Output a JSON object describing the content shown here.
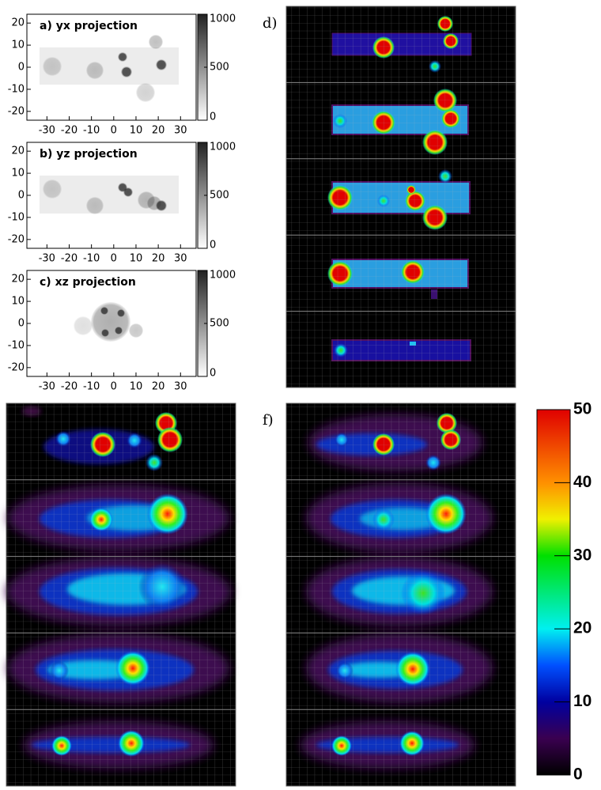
{
  "chart_data": [
    {
      "type": "heatmap",
      "title": "a) yx projection",
      "xlim": [
        -39,
        37
      ],
      "ylim": [
        -24,
        24
      ],
      "xticks": [
        -30,
        -20,
        -10,
        0,
        10,
        20,
        30
      ],
      "yticks": [
        -20,
        -10,
        0,
        10,
        20
      ],
      "clim": [
        0,
        1000
      ],
      "cticks": [
        0,
        500,
        1000
      ]
    },
    {
      "type": "heatmap",
      "title": "b) yz projection",
      "xlim": [
        -39,
        37
      ],
      "ylim": [
        -24,
        24
      ],
      "xticks": [
        -30,
        -20,
        -10,
        0,
        10,
        20,
        30
      ],
      "yticks": [
        -20,
        -10,
        0,
        10,
        20
      ],
      "clim": [
        0,
        1000
      ],
      "cticks": [
        0,
        500,
        1000
      ]
    },
    {
      "type": "heatmap",
      "title": "c) xz projection",
      "xlim": [
        -39,
        37
      ],
      "ylim": [
        -24,
        24
      ],
      "xticks": [
        -30,
        -20,
        -10,
        0,
        10,
        20,
        30
      ],
      "yticks": [
        -20,
        -10,
        0,
        10,
        20
      ],
      "clim": [
        0,
        1000
      ],
      "cticks": [
        0,
        500,
        1000
      ]
    },
    {
      "type": "heatmap",
      "title": "d)"
    },
    {
      "type": "heatmap"
    },
    {
      "type": "heatmap",
      "title": "f)"
    },
    {
      "type": "colorbar",
      "clim": [
        0,
        50
      ],
      "cticks": [
        0,
        10,
        20,
        30,
        40,
        50
      ]
    }
  ]
}
